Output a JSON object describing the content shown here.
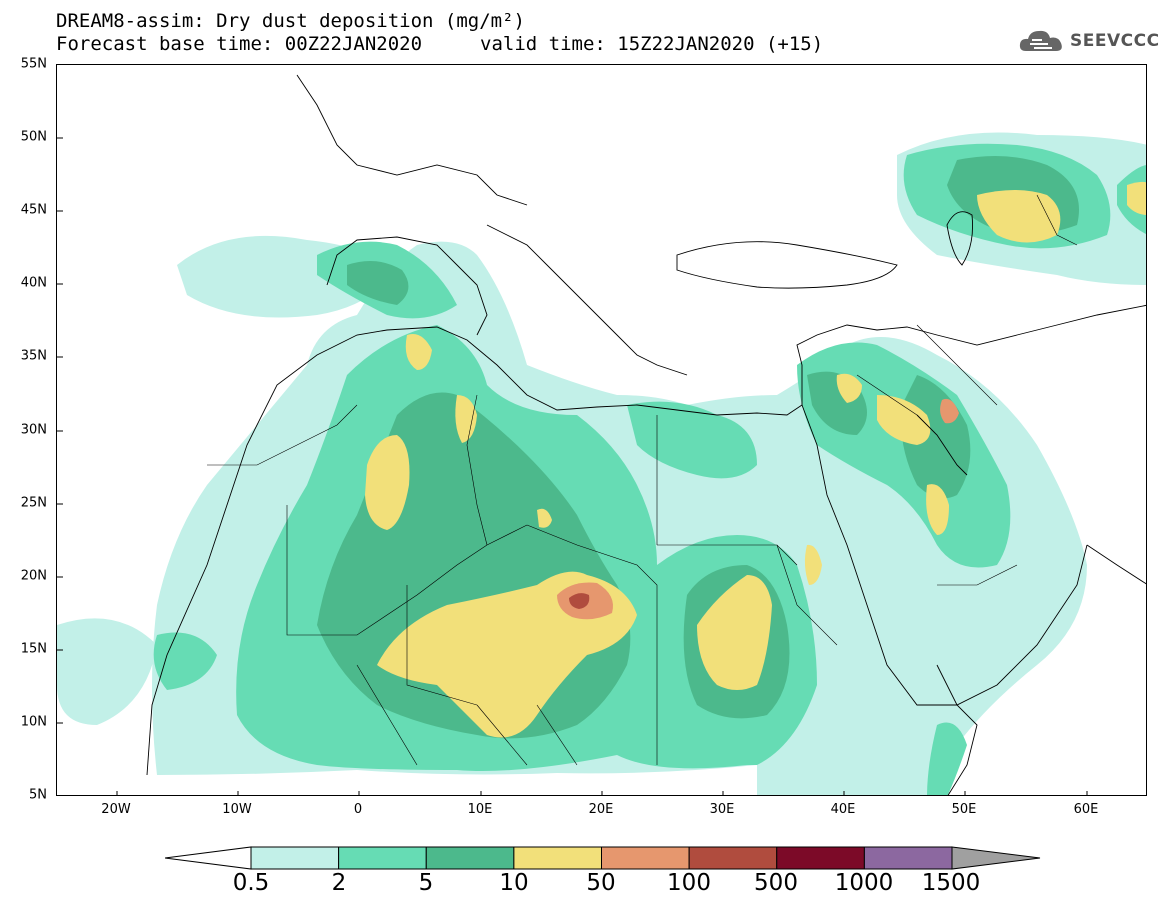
{
  "header": {
    "title": "DREAM8-assim: Dry dust deposition (mg/m²)",
    "base_time": "Forecast base time: 00Z22JAN2020",
    "valid_time": "valid time: 15Z22JAN2020 (+15)"
  },
  "logo": {
    "text": "SEEVCCC",
    "icon": "cloud-icon"
  },
  "axes": {
    "lat_labels": [
      "55N",
      "50N",
      "45N",
      "40N",
      "35N",
      "30N",
      "25N",
      "20N",
      "15N",
      "10N",
      "5N"
    ],
    "lon_labels": [
      "20W",
      "10W",
      "0",
      "10E",
      "20E",
      "30E",
      "40E",
      "50E",
      "60E"
    ]
  },
  "colorbar": {
    "levels": [
      "0.5",
      "2",
      "5",
      "10",
      "50",
      "100",
      "500",
      "1000",
      "1500"
    ],
    "colors": [
      "#c2f0e8",
      "#66dcb4",
      "#4cb98c",
      "#f2e07a",
      "#e6976e",
      "#b04c3e",
      "#7c0a28",
      "#8c68a0"
    ],
    "under_color": "#ffffff",
    "over_color": "#a0a0a0"
  }
}
